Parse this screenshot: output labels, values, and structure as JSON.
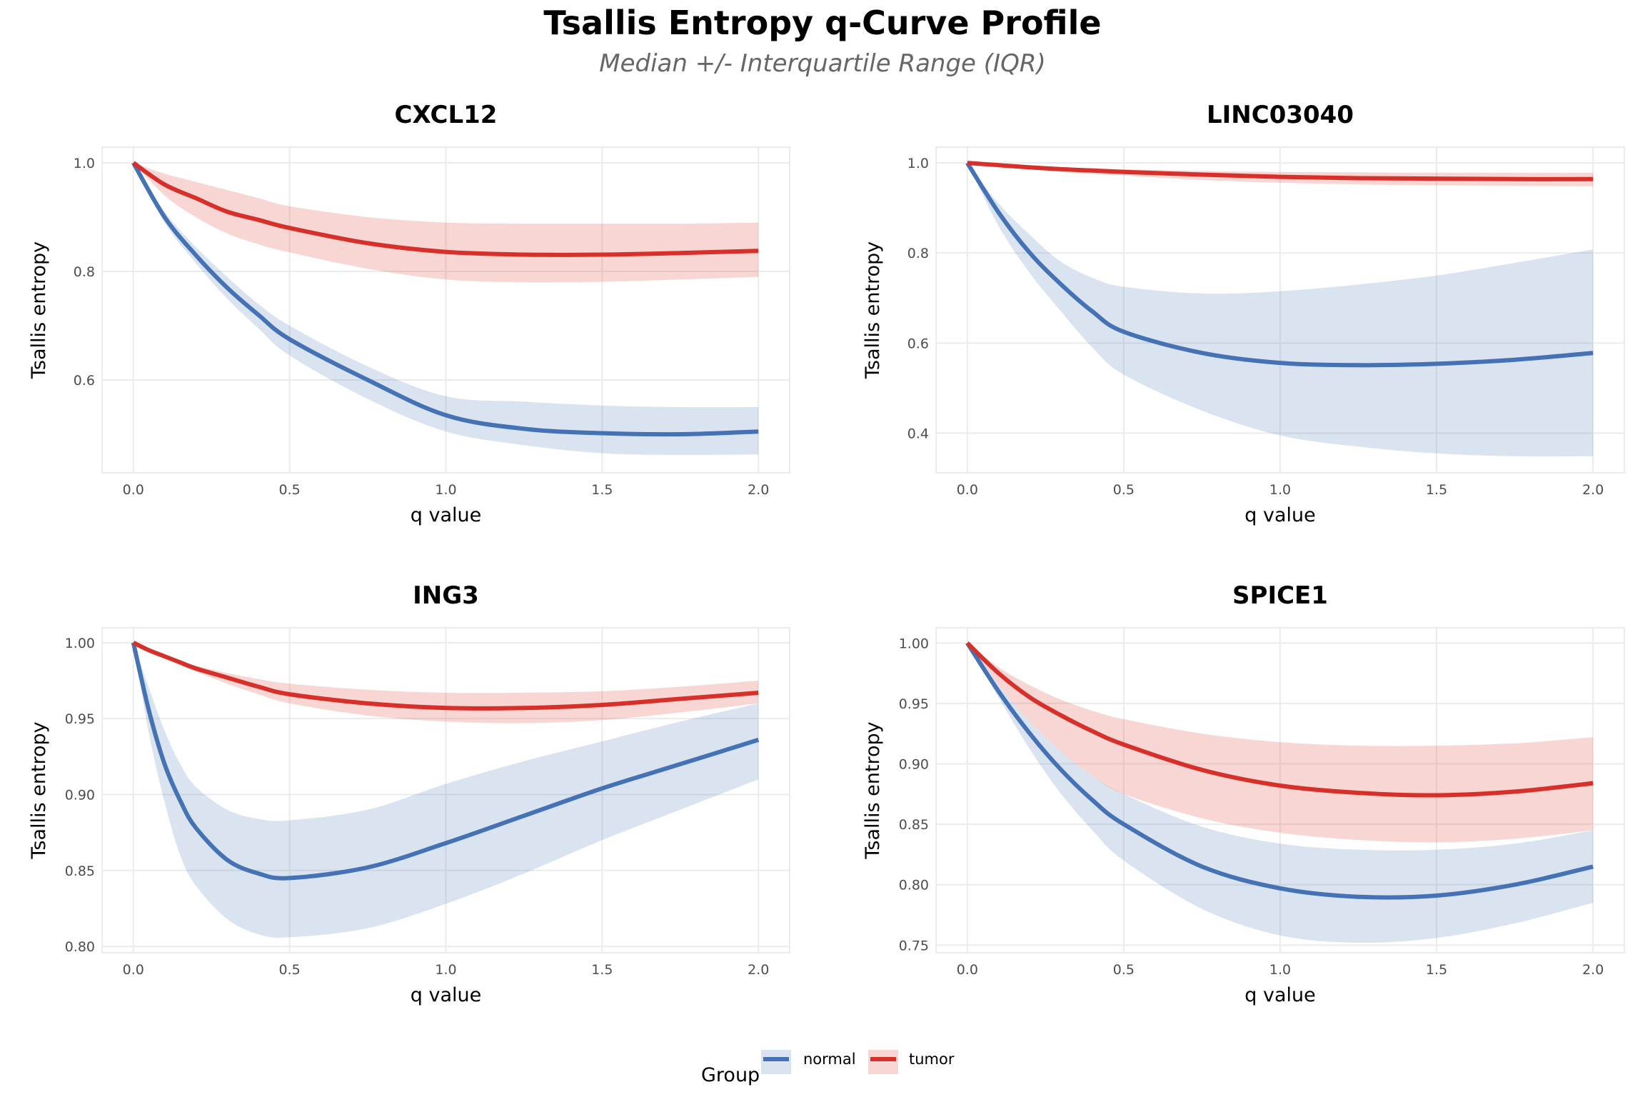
{
  "title": "Tsallis Entropy q-Curve Profile",
  "subtitle": "Median +/- Interquartile Range (IQR)",
  "colors": {
    "normal": "#4472b5",
    "tumor": "#d7302a",
    "grid": "#ebebeb"
  },
  "legend": {
    "title": "Group",
    "placement": "bottom",
    "entries": [
      "normal",
      "tumor"
    ]
  },
  "chart_data": [
    {
      "type": "line",
      "title": "CXCL12",
      "xlabel": "q value",
      "ylabel": "Tsallis entropy",
      "xlim": [
        -0.1,
        2.1
      ],
      "ylim": [
        0.429,
        1.029
      ],
      "xticks": [
        "0.0",
        "0.5",
        "1.0",
        "1.5",
        "2.0"
      ],
      "yticks": [
        "0.6",
        "0.8",
        "1.0"
      ],
      "grid": true,
      "q": [
        0,
        0.1,
        0.2,
        0.3,
        0.4,
        0.5,
        0.75,
        1.0,
        1.25,
        1.5,
        1.75,
        2.0
      ],
      "series": [
        {
          "name": "normal",
          "median": [
            1,
            0.9,
            0.83,
            0.77,
            0.72,
            0.675,
            0.6,
            0.535,
            0.51,
            0.502,
            0.5,
            0.505
          ],
          "q1": [
            1,
            0.89,
            0.815,
            0.75,
            0.695,
            0.645,
            0.565,
            0.505,
            0.48,
            0.465,
            0.462,
            0.463
          ],
          "q3": [
            1,
            0.91,
            0.845,
            0.79,
            0.74,
            0.7,
            0.625,
            0.57,
            0.56,
            0.553,
            0.55,
            0.55
          ]
        },
        {
          "name": "tumor",
          "median": [
            1,
            0.96,
            0.935,
            0.91,
            0.895,
            0.88,
            0.852,
            0.836,
            0.831,
            0.831,
            0.834,
            0.838
          ],
          "q1": [
            1,
            0.94,
            0.9,
            0.87,
            0.85,
            0.835,
            0.805,
            0.785,
            0.78,
            0.781,
            0.785,
            0.79
          ],
          "q3": [
            1,
            0.98,
            0.965,
            0.95,
            0.935,
            0.92,
            0.9,
            0.89,
            0.888,
            0.888,
            0.888,
            0.89
          ]
        }
      ]
    },
    {
      "type": "line",
      "title": "LINC03040",
      "xlabel": "q value",
      "ylabel": "Tsallis entropy",
      "xlim": [
        -0.1,
        2.1
      ],
      "ylim": [
        0.312,
        1.035
      ],
      "xticks": [
        "0.0",
        "0.5",
        "1.0",
        "1.5",
        "2.0"
      ],
      "yticks": [
        "0.4",
        "0.6",
        "0.8",
        "1.0"
      ],
      "grid": true,
      "q": [
        0,
        0.1,
        0.2,
        0.3,
        0.4,
        0.5,
        0.75,
        1.0,
        1.25,
        1.5,
        1.75,
        2.0
      ],
      "series": [
        {
          "name": "normal",
          "median": [
            1,
            0.89,
            0.8,
            0.73,
            0.67,
            0.625,
            0.578,
            0.556,
            0.551,
            0.554,
            0.563,
            0.578
          ],
          "q1": [
            1,
            0.86,
            0.755,
            0.67,
            0.59,
            0.53,
            0.45,
            0.395,
            0.37,
            0.355,
            0.349,
            0.349
          ],
          "q3": [
            1,
            0.91,
            0.84,
            0.78,
            0.745,
            0.725,
            0.71,
            0.715,
            0.73,
            0.75,
            0.778,
            0.808
          ]
        },
        {
          "name": "tumor",
          "median": [
            1,
            0.995,
            0.99,
            0.986,
            0.983,
            0.98,
            0.974,
            0.969,
            0.966,
            0.965,
            0.964,
            0.964
          ],
          "q1": [
            1,
            0.993,
            0.986,
            0.98,
            0.975,
            0.972,
            0.962,
            0.956,
            0.952,
            0.95,
            0.949,
            0.948
          ],
          "q3": [
            1,
            0.997,
            0.993,
            0.99,
            0.988,
            0.986,
            0.982,
            0.98,
            0.979,
            0.978,
            0.978,
            0.978
          ]
        }
      ]
    },
    {
      "type": "line",
      "title": "ING3",
      "xlabel": "q value",
      "ylabel": "Tsallis entropy",
      "xlim": [
        -0.1,
        2.1
      ],
      "ylim": [
        0.7958,
        1.0098
      ],
      "xticks": [
        "0.0",
        "0.5",
        "1.0",
        "1.5",
        "2.0"
      ],
      "yticks": [
        "0.80",
        "0.85",
        "0.90",
        "0.95",
        "1.00"
      ],
      "grid": true,
      "q": [
        0,
        0.05,
        0.1,
        0.15,
        0.2,
        0.3,
        0.4,
        0.5,
        0.75,
        1.0,
        1.25,
        1.5,
        1.75,
        2.0
      ],
      "series": [
        {
          "name": "normal",
          "median": [
            1,
            0.955,
            0.92,
            0.896,
            0.878,
            0.857,
            0.848,
            0.845,
            0.852,
            0.868,
            0.886,
            0.904,
            0.92,
            0.936
          ],
          "q1": [
            1,
            0.94,
            0.895,
            0.86,
            0.84,
            0.818,
            0.808,
            0.806,
            0.812,
            0.828,
            0.848,
            0.87,
            0.89,
            0.91
          ],
          "q3": [
            1,
            0.97,
            0.942,
            0.92,
            0.905,
            0.89,
            0.884,
            0.883,
            0.89,
            0.907,
            0.922,
            0.935,
            0.948,
            0.96
          ]
        },
        {
          "name": "tumor",
          "median": [
            1,
            0.995,
            0.991,
            0.987,
            0.983,
            0.977,
            0.971,
            0.966,
            0.96,
            0.957,
            0.957,
            0.959,
            0.963,
            0.967
          ],
          "q1": [
            1,
            0.995,
            0.99,
            0.985,
            0.981,
            0.973,
            0.966,
            0.96,
            0.952,
            0.948,
            0.947,
            0.949,
            0.954,
            0.96
          ],
          "q3": [
            1,
            0.996,
            0.992,
            0.988,
            0.985,
            0.98,
            0.976,
            0.973,
            0.969,
            0.967,
            0.967,
            0.968,
            0.971,
            0.975
          ]
        }
      ]
    },
    {
      "type": "line",
      "title": "SPICE1",
      "xlabel": "q value",
      "ylabel": "Tsallis entropy",
      "xlim": [
        -0.1,
        2.1
      ],
      "ylim": [
        0.7437,
        1.0126
      ],
      "xticks": [
        "0.0",
        "0.5",
        "1.0",
        "1.5",
        "2.0"
      ],
      "yticks": [
        "0.75",
        "0.80",
        "0.85",
        "0.90",
        "0.95",
        "1.00"
      ],
      "grid": true,
      "q": [
        0,
        0.1,
        0.2,
        0.3,
        0.4,
        0.5,
        0.75,
        1.0,
        1.25,
        1.5,
        1.75,
        2.0
      ],
      "series": [
        {
          "name": "normal",
          "median": [
            1,
            0.96,
            0.925,
            0.895,
            0.87,
            0.85,
            0.815,
            0.797,
            0.79,
            0.791,
            0.8,
            0.815
          ],
          "q1": [
            1,
            0.955,
            0.912,
            0.875,
            0.845,
            0.82,
            0.78,
            0.758,
            0.752,
            0.756,
            0.768,
            0.785
          ],
          "q3": [
            1,
            0.965,
            0.935,
            0.91,
            0.89,
            0.875,
            0.848,
            0.834,
            0.829,
            0.829,
            0.834,
            0.845
          ]
        },
        {
          "name": "tumor",
          "median": [
            1,
            0.975,
            0.955,
            0.94,
            0.927,
            0.916,
            0.895,
            0.882,
            0.876,
            0.874,
            0.877,
            0.884
          ],
          "q1": [
            1,
            0.965,
            0.935,
            0.91,
            0.89,
            0.875,
            0.855,
            0.843,
            0.837,
            0.835,
            0.838,
            0.845
          ],
          "q3": [
            1,
            0.98,
            0.965,
            0.953,
            0.944,
            0.937,
            0.925,
            0.918,
            0.915,
            0.915,
            0.917,
            0.922
          ]
        }
      ]
    }
  ]
}
